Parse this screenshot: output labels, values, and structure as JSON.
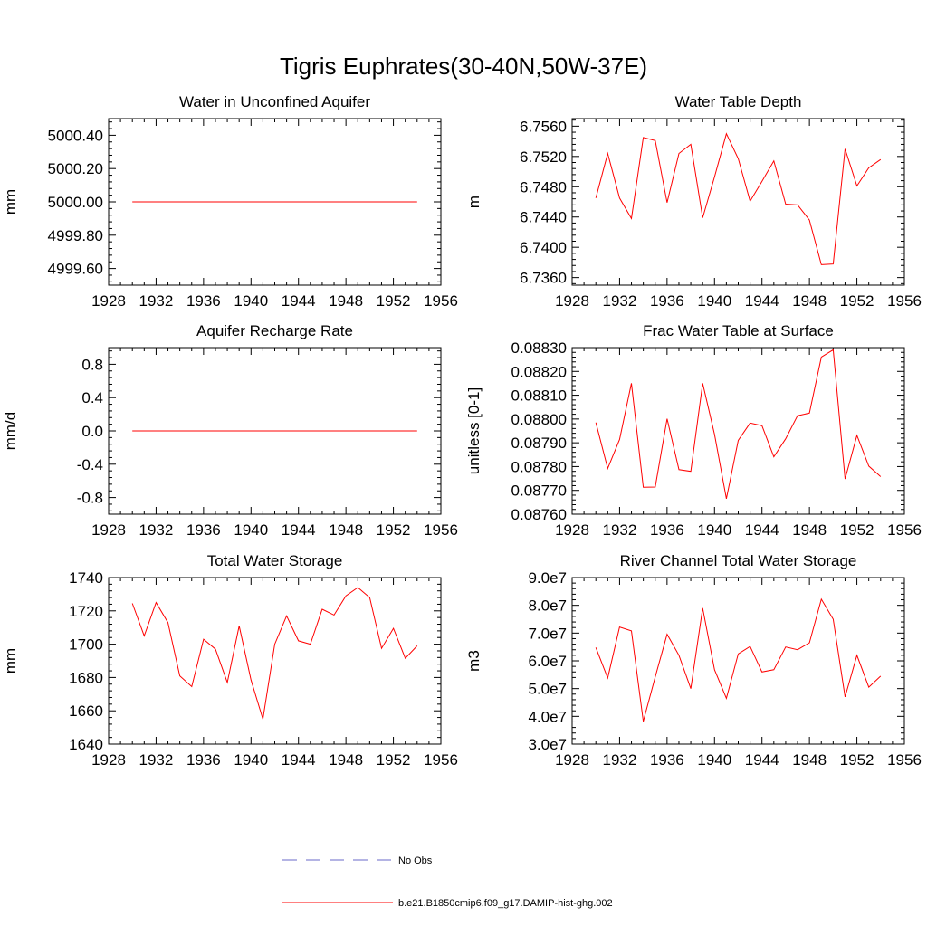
{
  "page": {
    "title": "Tigris Euphrates(30-40N,50W-37E)"
  },
  "legend": {
    "items": [
      {
        "label": "No Obs",
        "style": "dashed",
        "color": "#6a6ac8"
      },
      {
        "label": "b.e21.B1850cmip6.f09_g17.DAMIP-hist-ghg.002",
        "style": "solid",
        "color": "#ff0000"
      }
    ]
  },
  "colors": {
    "series": "#ff0000",
    "obs": "#6a6ac8",
    "axis": "#000000"
  },
  "chart_data": [
    {
      "type": "line",
      "title": "Water in Unconfined Aquifer",
      "ylabel": "mm",
      "xlim": [
        1928,
        1956
      ],
      "ylim": [
        4999.5,
        5000.5
      ],
      "xticks": [
        1928,
        1932,
        1936,
        1940,
        1944,
        1948,
        1952,
        1956
      ],
      "xticklabels": [
        "1928",
        "1932",
        "1936",
        "1940",
        "1944",
        "1948",
        "1952",
        "1956"
      ],
      "yticks": [
        4999.6,
        4999.8,
        5000.0,
        5000.2,
        5000.4
      ],
      "yticklabels": [
        "4999.60",
        "4999.80",
        "5000.00",
        "5000.20",
        "5000.40"
      ],
      "series": [
        {
          "x": [
            1930,
            1931,
            1932,
            1933,
            1934,
            1935,
            1936,
            1937,
            1938,
            1939,
            1940,
            1941,
            1942,
            1943,
            1944,
            1945,
            1946,
            1947,
            1948,
            1949,
            1950,
            1951,
            1952,
            1953,
            1954
          ],
          "values": [
            5000,
            5000,
            5000,
            5000,
            5000,
            5000,
            5000,
            5000,
            5000,
            5000,
            5000,
            5000,
            5000,
            5000,
            5000,
            5000,
            5000,
            5000,
            5000,
            5000,
            5000,
            5000,
            5000,
            5000,
            5000
          ]
        }
      ]
    },
    {
      "type": "line",
      "title": "Water Table Depth",
      "ylabel": "m",
      "xlim": [
        1928,
        1956
      ],
      "ylim": [
        6.735,
        6.757
      ],
      "xticks": [
        1928,
        1932,
        1936,
        1940,
        1944,
        1948,
        1952,
        1956
      ],
      "xticklabels": [
        "1928",
        "1932",
        "1936",
        "1940",
        "1944",
        "1948",
        "1952",
        "1956"
      ],
      "yticks": [
        6.736,
        6.74,
        6.744,
        6.748,
        6.752,
        6.756
      ],
      "yticklabels": [
        "6.7360",
        "6.7400",
        "6.7440",
        "6.7480",
        "6.7520",
        "6.7560"
      ],
      "series": [
        {
          "x": [
            1930,
            1931,
            1932,
            1933,
            1934,
            1935,
            1936,
            1937,
            1938,
            1939,
            1940,
            1941,
            1942,
            1943,
            1944,
            1945,
            1946,
            1947,
            1948,
            1949,
            1950,
            1951,
            1952,
            1953,
            1954
          ],
          "values": [
            6.7465,
            6.7524,
            6.7465,
            6.7438,
            6.7545,
            6.7541,
            6.7459,
            6.7524,
            6.7536,
            6.7439,
            6.7493,
            6.755,
            6.7517,
            6.7461,
            6.7487,
            6.7514,
            6.7457,
            6.7456,
            6.7436,
            6.7377,
            6.7378,
            6.753,
            6.7481,
            6.7505,
            6.7516
          ]
        }
      ]
    },
    {
      "type": "line",
      "title": "Aquifer Recharge Rate",
      "ylabel": "mm/d",
      "xlim": [
        1928,
        1956
      ],
      "ylim": [
        -1.0,
        1.0
      ],
      "xticks": [
        1928,
        1932,
        1936,
        1940,
        1944,
        1948,
        1952,
        1956
      ],
      "xticklabels": [
        "1928",
        "1932",
        "1936",
        "1940",
        "1944",
        "1948",
        "1952",
        "1956"
      ],
      "yticks": [
        -0.8,
        -0.4,
        0.0,
        0.4,
        0.8
      ],
      "yticklabels": [
        "-0.8",
        "-0.4",
        "0.0",
        "0.4",
        "0.8"
      ],
      "series": [
        {
          "x": [
            1930,
            1931,
            1932,
            1933,
            1934,
            1935,
            1936,
            1937,
            1938,
            1939,
            1940,
            1941,
            1942,
            1943,
            1944,
            1945,
            1946,
            1947,
            1948,
            1949,
            1950,
            1951,
            1952,
            1953,
            1954
          ],
          "values": [
            0,
            0,
            0,
            0,
            0,
            0,
            0,
            0,
            0,
            0,
            0,
            0,
            0,
            0,
            0,
            0,
            0,
            0,
            0,
            0,
            0,
            0,
            0,
            0,
            0
          ]
        }
      ]
    },
    {
      "type": "line",
      "title": "Frac Water Table at Surface",
      "ylabel": "unitless [0-1]",
      "xlim": [
        1928,
        1956
      ],
      "ylim": [
        0.0876,
        0.0883
      ],
      "xticks": [
        1928,
        1932,
        1936,
        1940,
        1944,
        1948,
        1952,
        1956
      ],
      "xticklabels": [
        "1928",
        "1932",
        "1936",
        "1940",
        "1944",
        "1948",
        "1952",
        "1956"
      ],
      "yticks": [
        0.0876,
        0.0877,
        0.0878,
        0.0879,
        0.088,
        0.0881,
        0.0882,
        0.0883
      ],
      "yticklabels": [
        "0.08760",
        "0.08770",
        "0.08780",
        "0.08790",
        "0.08800",
        "0.08810",
        "0.08820",
        "0.08830"
      ],
      "series": [
        {
          "x": [
            1930,
            1931,
            1932,
            1933,
            1934,
            1935,
            1936,
            1937,
            1938,
            1939,
            1940,
            1941,
            1942,
            1943,
            1944,
            1945,
            1946,
            1947,
            1948,
            1949,
            1950,
            1951,
            1952,
            1953,
            1954
          ],
          "values": [
            0.087985,
            0.087792,
            0.087914,
            0.08815,
            0.087713,
            0.087714,
            0.088001,
            0.087787,
            0.08778,
            0.08815,
            0.087935,
            0.087665,
            0.08791,
            0.087983,
            0.087972,
            0.087841,
            0.087917,
            0.088014,
            0.088025,
            0.08826,
            0.088291,
            0.087748,
            0.087931,
            0.087802,
            0.087758
          ]
        }
      ]
    },
    {
      "type": "line",
      "title": "Total Water Storage",
      "ylabel": "mm",
      "xlim": [
        1928,
        1956
      ],
      "ylim": [
        1640,
        1740
      ],
      "xticks": [
        1928,
        1932,
        1936,
        1940,
        1944,
        1948,
        1952,
        1956
      ],
      "xticklabels": [
        "1928",
        "1932",
        "1936",
        "1940",
        "1944",
        "1948",
        "1952",
        "1956"
      ],
      "yticks": [
        1640,
        1660,
        1680,
        1700,
        1720,
        1740
      ],
      "yticklabels": [
        "1640",
        "1660",
        "1680",
        "1700",
        "1720",
        "1740"
      ],
      "series": [
        {
          "x": [
            1930,
            1931,
            1932,
            1933,
            1934,
            1935,
            1936,
            1937,
            1938,
            1939,
            1940,
            1941,
            1942,
            1943,
            1944,
            1945,
            1946,
            1947,
            1948,
            1949,
            1950,
            1951,
            1952,
            1953,
            1954
          ],
          "values": [
            1724.5,
            1705,
            1725,
            1713,
            1681,
            1674.5,
            1703,
            1697,
            1677,
            1711,
            1678.5,
            1655,
            1700,
            1717,
            1702,
            1700,
            1721,
            1717.5,
            1729,
            1734,
            1728,
            1697.5,
            1709.5,
            1691.5,
            1699
          ]
        }
      ]
    },
    {
      "type": "line",
      "title": "River Channel Total Water Storage",
      "ylabel": "m3",
      "xlim": [
        1928,
        1956
      ],
      "ylim": [
        30000000,
        90000000
      ],
      "xticks": [
        1928,
        1932,
        1936,
        1940,
        1944,
        1948,
        1952,
        1956
      ],
      "xticklabels": [
        "1928",
        "1932",
        "1936",
        "1940",
        "1944",
        "1948",
        "1952",
        "1956"
      ],
      "yticks": [
        30000000,
        40000000,
        50000000,
        60000000,
        70000000,
        80000000,
        90000000
      ],
      "yticklabels": [
        "3.0e7",
        "4.0e7",
        "5.0e7",
        "6.0e7",
        "7.0e7",
        "8.0e7",
        "9.0e7"
      ],
      "series": [
        {
          "x": [
            1930,
            1931,
            1932,
            1933,
            1934,
            1935,
            1936,
            1937,
            1938,
            1939,
            1940,
            1941,
            1942,
            1943,
            1944,
            1945,
            1946,
            1947,
            1948,
            1949,
            1950,
            1951,
            1952,
            1953,
            1954
          ],
          "values": [
            64800000,
            53800000,
            72200000,
            70800000,
            38200000,
            54200000,
            69600000,
            62000000,
            50000000,
            79000000,
            56800000,
            46500000,
            62500000,
            65200000,
            56000000,
            56800000,
            65000000,
            64000000,
            66500000,
            82200000,
            75000000,
            47000000,
            62000000,
            50500000,
            54500000
          ]
        }
      ]
    }
  ]
}
